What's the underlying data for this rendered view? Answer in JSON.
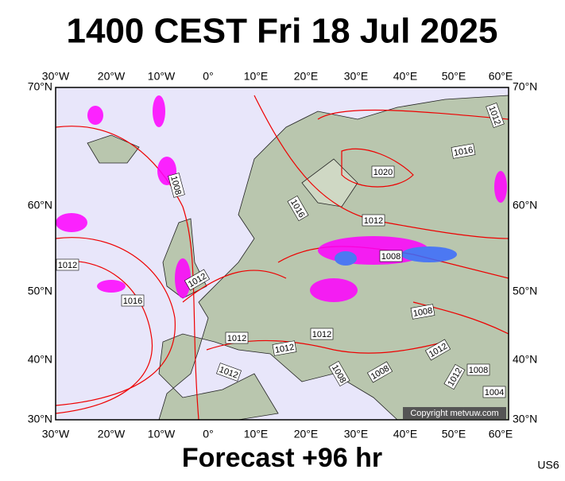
{
  "header": {
    "title": "1400 CEST Fri 18 Jul 2025"
  },
  "map": {
    "longitude_labels": [
      "30°W",
      "20°W",
      "10°W",
      "0°",
      "10°E",
      "20°E",
      "30°E",
      "40°E",
      "50°E",
      "60°E"
    ],
    "latitude_labels": [
      "70°N",
      "60°N",
      "50°N",
      "40°N",
      "30°N"
    ],
    "isobar_labels": [
      "1012",
      "1016",
      "1020",
      "1008",
      "1016",
      "1012",
      "1008",
      "1012",
      "1012",
      "1016",
      "1008",
      "1012",
      "1012",
      "1012",
      "1012",
      "1008",
      "1008",
      "1012",
      "1012",
      "1008",
      "1004"
    ],
    "copyright": "Copyright metvuw.com"
  },
  "footer": {
    "forecast": "Forecast +96 hr",
    "code": "US6"
  }
}
